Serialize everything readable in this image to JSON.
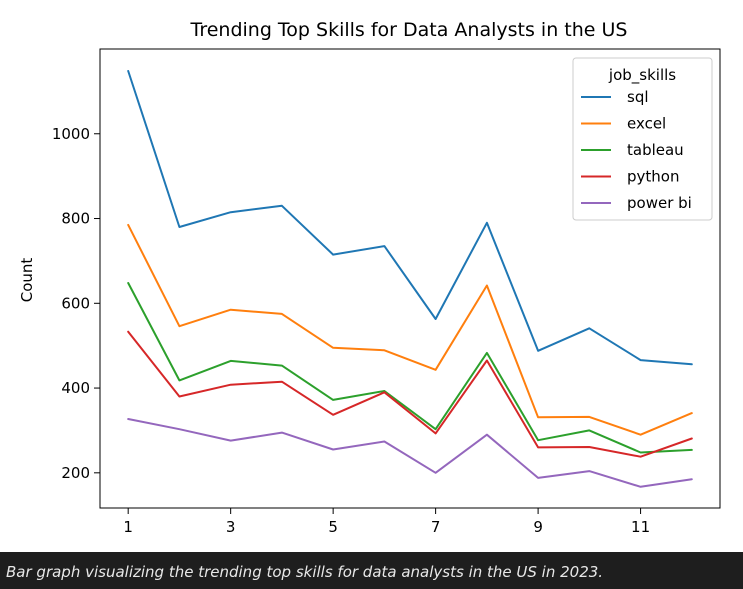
{
  "caption": "Bar graph visualizing the trending top skills for data analysts in the US in 2023.",
  "chart_data": {
    "type": "line",
    "title": "Trending Top Skills for Data Analysts in the US",
    "xlabel": "",
    "ylabel": "Count",
    "x": [
      1,
      2,
      3,
      4,
      5,
      6,
      7,
      8,
      9,
      10,
      11,
      12
    ],
    "xticks": [
      1,
      3,
      5,
      7,
      9,
      11
    ],
    "yticks": [
      200,
      400,
      600,
      800,
      1000
    ],
    "xlim": [
      0.45,
      12.55
    ],
    "ylim": [
      117,
      1200
    ],
    "legend": {
      "title": "job_skills",
      "placement": "top-right"
    },
    "grid": false,
    "series": [
      {
        "name": "sql",
        "color": "#1f77b4",
        "values": [
          1148,
          780,
          815,
          830,
          715,
          735,
          563,
          790,
          488,
          541,
          466,
          456
        ]
      },
      {
        "name": "excel",
        "color": "#ff7f0e",
        "values": [
          785,
          546,
          585,
          575,
          495,
          489,
          443,
          642,
          331,
          332,
          290,
          341
        ]
      },
      {
        "name": "tableau",
        "color": "#2ca02c",
        "values": [
          648,
          418,
          464,
          453,
          372,
          393,
          303,
          483,
          277,
          300,
          248,
          254
        ]
      },
      {
        "name": "python",
        "color": "#d62728",
        "values": [
          533,
          380,
          408,
          415,
          337,
          390,
          293,
          465,
          260,
          261,
          238,
          281
        ]
      },
      {
        "name": "power bi",
        "color": "#9467bd",
        "values": [
          327,
          303,
          276,
          295,
          255,
          274,
          200,
          290,
          188,
          204,
          167,
          185
        ]
      }
    ]
  }
}
